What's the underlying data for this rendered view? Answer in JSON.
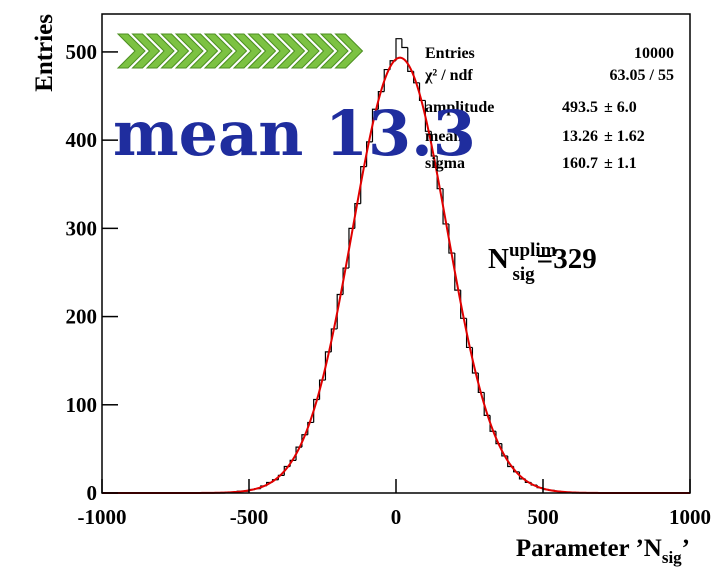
{
  "chart_data": {
    "type": "histogram",
    "y_label": "Entries",
    "x_label": {
      "text": "Parameter ’N",
      "sub": "sig",
      "after": "’"
    },
    "bins": [
      -1000,
      -980,
      -960,
      -940,
      -920,
      -900,
      -880,
      -860,
      -840,
      -820,
      -800,
      -780,
      -760,
      -740,
      -720,
      -700,
      -680,
      -660,
      -640,
      -620,
      -600,
      -580,
      -560,
      -540,
      -520,
      -500,
      -480,
      -460,
      -440,
      -420,
      -400,
      -380,
      -360,
      -340,
      -320,
      -300,
      -280,
      -260,
      -240,
      -220,
      -200,
      -180,
      -160,
      -140,
      -120,
      -100,
      -80,
      -60,
      -40,
      -20,
      0,
      20,
      40,
      60,
      80,
      100,
      120,
      140,
      160,
      180,
      200,
      220,
      240,
      260,
      280,
      300,
      320,
      340,
      360,
      380,
      400,
      420,
      440,
      460,
      480,
      500,
      520,
      540,
      560,
      580,
      600,
      620,
      640,
      660,
      680,
      700,
      720,
      740,
      760,
      780,
      800,
      820,
      840,
      860,
      880,
      900,
      920,
      940,
      960,
      980,
      1000
    ],
    "values": [
      0,
      0,
      0,
      0,
      0,
      0,
      0,
      0,
      0,
      0,
      0,
      0,
      0,
      0,
      0,
      0,
      0,
      0,
      0,
      0,
      0,
      1,
      1,
      2,
      2,
      4,
      5,
      8,
      12,
      15,
      20,
      30,
      37,
      52,
      66,
      80,
      106,
      128,
      160,
      186,
      225,
      255,
      300,
      328,
      370,
      398,
      435,
      455,
      480,
      490,
      515,
      505,
      478,
      465,
      445,
      410,
      382,
      345,
      305,
      272,
      230,
      198,
      165,
      136,
      114,
      88,
      70,
      56,
      42,
      30,
      24,
      16,
      12,
      9,
      6,
      4,
      3,
      2,
      1,
      1,
      0,
      0,
      0,
      0,
      0,
      0,
      0,
      0,
      0,
      0,
      0,
      0,
      0,
      0,
      0,
      0,
      0,
      0,
      0,
      0
    ],
    "color": "#000000",
    "fit_color": "#e00000",
    "xlim": [
      -1000,
      1000
    ],
    "ylim": [
      0,
      543
    ],
    "xticks": [
      -1000,
      -500,
      0,
      500,
      1000
    ],
    "yticks": [
      0,
      100,
      200,
      300,
      400,
      500
    ],
    "stats": [
      {
        "name": "Entries",
        "value": 10000
      },
      {
        "name": "χ² / ndf",
        "value": "63.05 / 55"
      },
      {
        "name": "amplitude",
        "value": 493.5,
        "error": {
          "value": 6.0,
          "label": "± 6.0"
        }
      },
      {
        "name": "mean",
        "value": 13.26,
        "error": {
          "value": 1.62,
          "label": "± 1.62"
        }
      },
      {
        "name": "sigma",
        "value": 160.7,
        "error": {
          "value": 1.1,
          "label": "± 1.1"
        }
      }
    ],
    "annotations": [
      {
        "text": "mean 13.3",
        "color": "#1f2d9e"
      },
      {
        "base": "N",
        "sub": "sig",
        "sup": "uplim",
        "text": "=329"
      }
    ]
  }
}
